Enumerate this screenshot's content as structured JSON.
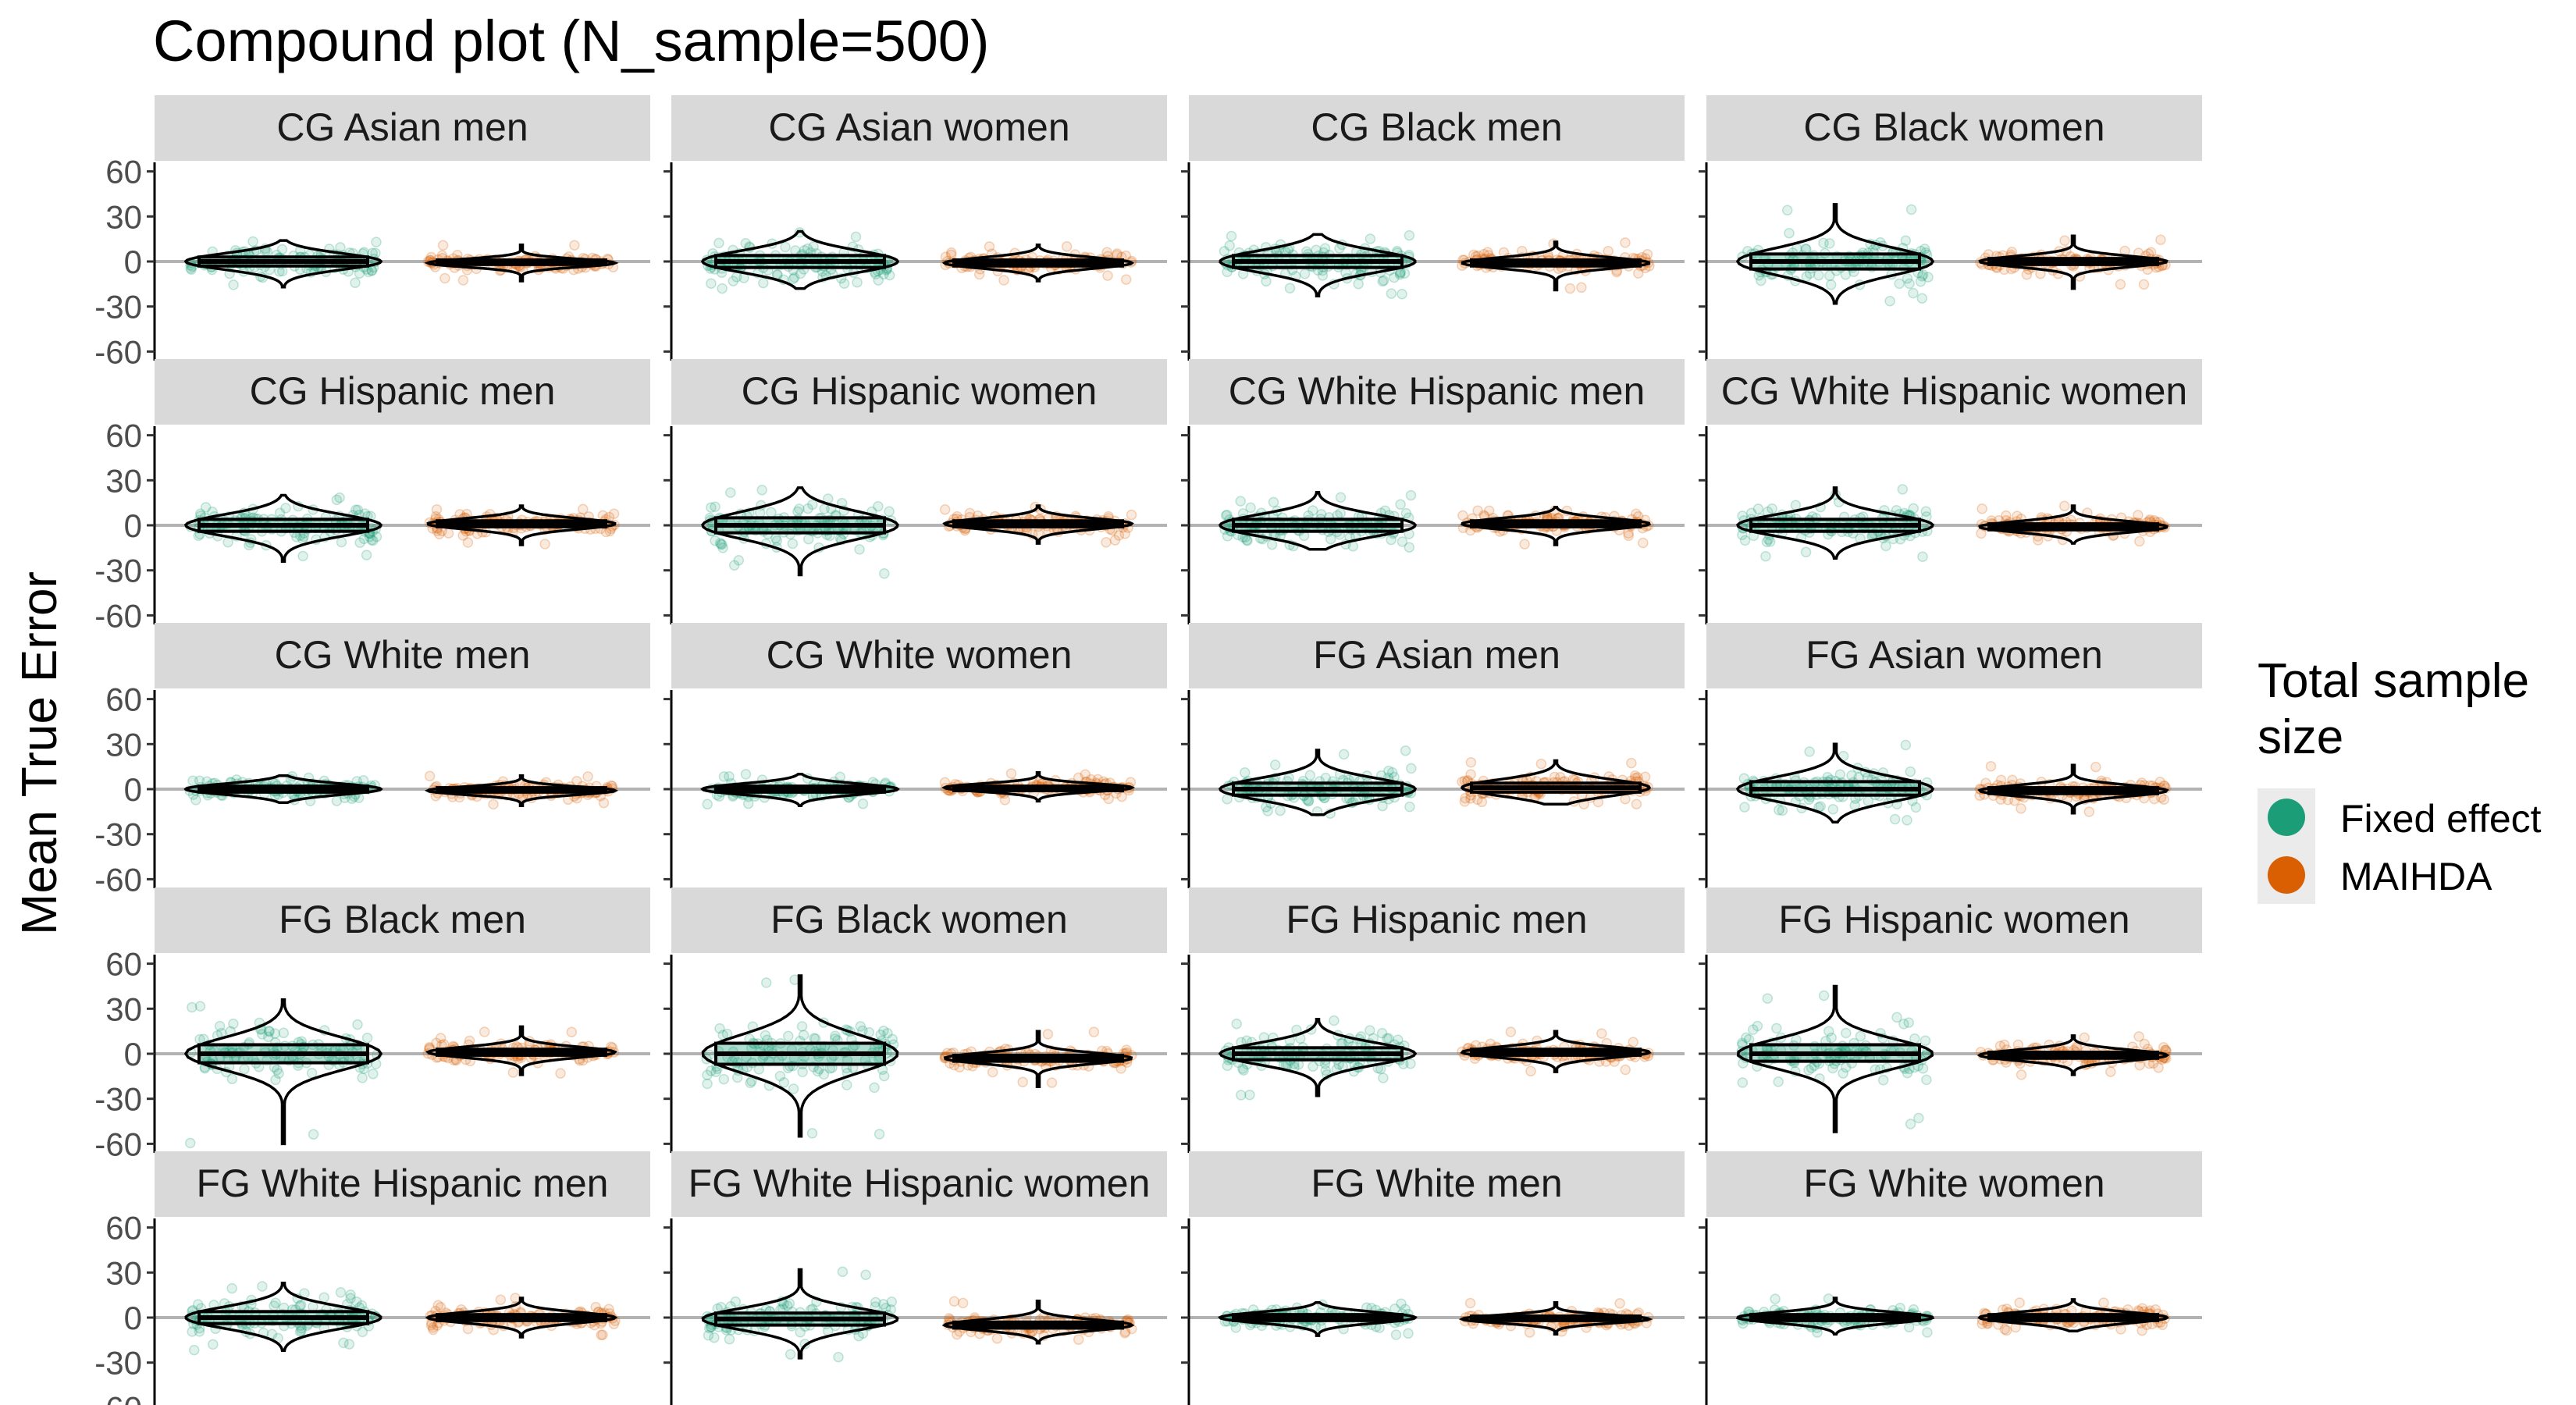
{
  "chart_data": {
    "type": "violin",
    "title": "Compound plot (N_sample=500)",
    "xlabel": "",
    "ylabel": "Mean True Error",
    "ylim": [
      -65,
      65
    ],
    "yticks": [
      60,
      30,
      0,
      -30,
      -60
    ],
    "ytick_labels": [
      "60",
      "30",
      "0",
      "-30",
      "-60"
    ],
    "grid": false,
    "legend": {
      "title": "Total sample size",
      "title_lines": [
        "Total sample",
        "size"
      ],
      "position": "right",
      "entries": [
        {
          "name": "Fixed effect",
          "color": "#1b9e77"
        },
        {
          "name": "MAIHDA",
          "color": "#d95f02"
        }
      ]
    },
    "series_names": [
      "Fixed effect",
      "MAIHDA"
    ],
    "colors": {
      "Fixed effect": "#1b9e77",
      "MAIHDA": "#d95f02"
    },
    "facets": [
      {
        "label": "CG Asian men",
        "fe": {
          "median": 0,
          "q1": -3,
          "q3": 3,
          "min": -17,
          "max": 14
        },
        "ma": {
          "median": -1,
          "q1": -2,
          "q3": 1,
          "min": -13,
          "max": 11
        }
      },
      {
        "label": "CG Asian women",
        "fe": {
          "median": 0,
          "q1": -4,
          "q3": 4,
          "min": -18,
          "max": 20
        },
        "ma": {
          "median": -1,
          "q1": -3,
          "q3": 1,
          "min": -13,
          "max": 11
        }
      },
      {
        "label": "CG Black men",
        "fe": {
          "median": 0,
          "q1": -4,
          "q3": 4,
          "min": -23,
          "max": 18
        },
        "ma": {
          "median": -1,
          "q1": -3,
          "q3": 1,
          "min": -19,
          "max": 13
        }
      },
      {
        "label": "CG Black women",
        "fe": {
          "median": 0,
          "q1": -5,
          "q3": 5,
          "min": -28,
          "max": 38
        },
        "ma": {
          "median": 0,
          "q1": -2,
          "q3": 2,
          "min": -18,
          "max": 17
        }
      },
      {
        "label": "CG Hispanic men",
        "fe": {
          "median": 0,
          "q1": -4,
          "q3": 4,
          "min": -24,
          "max": 20
        },
        "ma": {
          "median": 1,
          "q1": -1,
          "q3": 3,
          "min": -13,
          "max": 13
        }
      },
      {
        "label": "CG Hispanic women",
        "fe": {
          "median": 0,
          "q1": -5,
          "q3": 5,
          "min": -33,
          "max": 25
        },
        "ma": {
          "median": 1,
          "q1": -1,
          "q3": 3,
          "min": -12,
          "max": 13
        }
      },
      {
        "label": "CG White Hispanic men",
        "fe": {
          "median": 0,
          "q1": -4,
          "q3": 4,
          "min": -16,
          "max": 22
        },
        "ma": {
          "median": 1,
          "q1": -1,
          "q3": 3,
          "min": -13,
          "max": 12
        }
      },
      {
        "label": "CG White Hispanic women",
        "fe": {
          "median": 0,
          "q1": -4,
          "q3": 4,
          "min": -22,
          "max": 25
        },
        "ma": {
          "median": -1,
          "q1": -3,
          "q3": 1,
          "min": -12,
          "max": 13
        }
      },
      {
        "label": "CG White men",
        "fe": {
          "median": 0,
          "q1": -2,
          "q3": 2,
          "min": -9,
          "max": 9
        },
        "ma": {
          "median": -1,
          "q1": -2,
          "q3": 1,
          "min": -11,
          "max": 9
        }
      },
      {
        "label": "CG White women",
        "fe": {
          "median": 0,
          "q1": -2,
          "q3": 2,
          "min": -11,
          "max": 10
        },
        "ma": {
          "median": 1,
          "q1": -1,
          "q3": 2,
          "min": -8,
          "max": 11
        }
      },
      {
        "label": "FG Asian men",
        "fe": {
          "median": 0,
          "q1": -4,
          "q3": 4,
          "min": -17,
          "max": 26
        },
        "ma": {
          "median": 1,
          "q1": -2,
          "q3": 4,
          "min": -10,
          "max": 19
        }
      },
      {
        "label": "FG Asian women",
        "fe": {
          "median": 0,
          "q1": -4,
          "q3": 5,
          "min": -22,
          "max": 30
        },
        "ma": {
          "median": -1,
          "q1": -3,
          "q3": 1,
          "min": -16,
          "max": 16
        }
      },
      {
        "label": "FG Black men",
        "fe": {
          "median": 0,
          "q1": -6,
          "q3": 6,
          "min": -60,
          "max": 36
        },
        "ma": {
          "median": 1,
          "q1": -1,
          "q3": 3,
          "min": -14,
          "max": 18
        }
      },
      {
        "label": "FG Black women",
        "fe": {
          "median": 0,
          "q1": -7,
          "q3": 7,
          "min": -55,
          "max": 52
        },
        "ma": {
          "median": -3,
          "q1": -5,
          "q3": -1,
          "min": -22,
          "max": 15
        }
      },
      {
        "label": "FG Hispanic men",
        "fe": {
          "median": 0,
          "q1": -4,
          "q3": 4,
          "min": -28,
          "max": 23
        },
        "ma": {
          "median": 1,
          "q1": -1,
          "q3": 3,
          "min": -12,
          "max": 15
        }
      },
      {
        "label": "FG Hispanic women",
        "fe": {
          "median": 0,
          "q1": -5,
          "q3": 6,
          "min": -52,
          "max": 45
        },
        "ma": {
          "median": -1,
          "q1": -3,
          "q3": 1,
          "min": -14,
          "max": 12
        }
      },
      {
        "label": "FG White Hispanic men",
        "fe": {
          "median": 0,
          "q1": -4,
          "q3": 4,
          "min": -22,
          "max": 23
        },
        "ma": {
          "median": 0,
          "q1": -2,
          "q3": 2,
          "min": -13,
          "max": 13
        }
      },
      {
        "label": "FG White Hispanic women",
        "fe": {
          "median": -1,
          "q1": -5,
          "q3": 3,
          "min": -27,
          "max": 32
        },
        "ma": {
          "median": -5,
          "q1": -7,
          "q3": -3,
          "min": -17,
          "max": 11
        }
      },
      {
        "label": "FG White men",
        "fe": {
          "median": 0,
          "q1": -2,
          "q3": 2,
          "min": -12,
          "max": 10
        },
        "ma": {
          "median": -1,
          "q1": -2,
          "q3": 1,
          "min": -11,
          "max": 10
        }
      },
      {
        "label": "FG White women",
        "fe": {
          "median": 0,
          "q1": -2,
          "q3": 2,
          "min": -11,
          "max": 13
        },
        "ma": {
          "median": 0,
          "q1": -2,
          "q3": 2,
          "min": -9,
          "max": 12
        }
      }
    ]
  }
}
